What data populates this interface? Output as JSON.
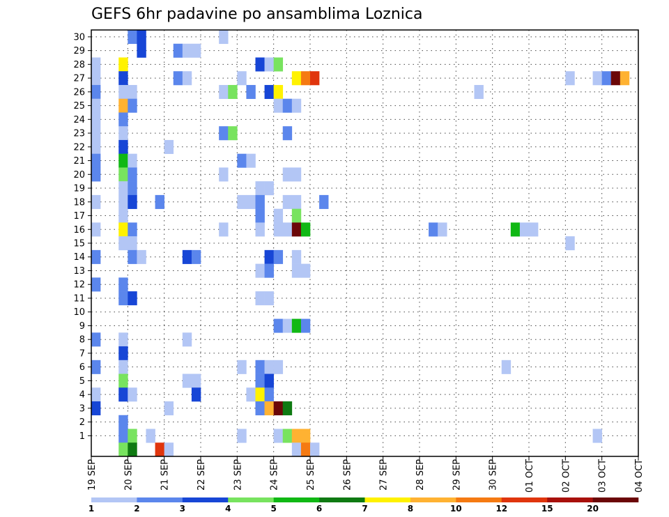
{
  "chart_data": {
    "type": "heatmap",
    "title": "GEFS 6hr padavine po ansamblima Loznica",
    "y_ticks": [
      "1",
      "2",
      "3",
      "4",
      "5",
      "6",
      "7",
      "8",
      "9",
      "10",
      "11",
      "12",
      "13",
      "14",
      "15",
      "16",
      "17",
      "18",
      "19",
      "20",
      "21",
      "22",
      "23",
      "24",
      "25",
      "26",
      "27",
      "28",
      "29",
      "30"
    ],
    "x_ticks": [
      "19 SEP",
      "20 SEP",
      "21 SEP",
      "22 SEP",
      "23 SEP",
      "24 SEP",
      "25 SEP",
      "26 SEP",
      "27 SEP",
      "28 SEP",
      "29 SEP",
      "30 SEP",
      "01 OCT",
      "02 OCT",
      "03 OCT",
      "04 OCT"
    ],
    "time_steps_per_day": 4,
    "grid": true,
    "legend": {
      "position": "bottom",
      "labels": [
        "1",
        "2",
        "3",
        "4",
        "5",
        "6",
        "7",
        "8",
        "10",
        "12",
        "15",
        "20"
      ],
      "colors": [
        "#b3c6f5",
        "#5b86ec",
        "#1746d6",
        "#78e35f",
        "#10b814",
        "#0f7a12",
        "#fff200",
        "#ffb232",
        "#f57a12",
        "#e0350d",
        "#a8100b",
        "#6b0708"
      ]
    },
    "cells_format": "[time_step_index, member, color_class]",
    "cells": [
      [
        4,
        30,
        1
      ],
      [
        5,
        30,
        2
      ],
      [
        5,
        29,
        2
      ],
      [
        14,
        30,
        0
      ],
      [
        9,
        29,
        1
      ],
      [
        10,
        29,
        0
      ],
      [
        11,
        29,
        0
      ],
      [
        0,
        28,
        0
      ],
      [
        3,
        28,
        6
      ],
      [
        18,
        28,
        2
      ],
      [
        19,
        28,
        0
      ],
      [
        20,
        28,
        3
      ],
      [
        0,
        27,
        0
      ],
      [
        3,
        27,
        2
      ],
      [
        9,
        27,
        1
      ],
      [
        10,
        27,
        0
      ],
      [
        16,
        27,
        0
      ],
      [
        22,
        27,
        6
      ],
      [
        23,
        27,
        8
      ],
      [
        24,
        27,
        9
      ],
      [
        52,
        27,
        0
      ],
      [
        55,
        27,
        0
      ],
      [
        56,
        27,
        1
      ],
      [
        57,
        27,
        11
      ],
      [
        58,
        27,
        7
      ],
      [
        0,
        26,
        1
      ],
      [
        3,
        26,
        0
      ],
      [
        4,
        26,
        0
      ],
      [
        14,
        26,
        0
      ],
      [
        15,
        26,
        3
      ],
      [
        17,
        26,
        1
      ],
      [
        19,
        26,
        2
      ],
      [
        20,
        26,
        6
      ],
      [
        42,
        26,
        0
      ],
      [
        0,
        25,
        0
      ],
      [
        3,
        25,
        7
      ],
      [
        4,
        25,
        1
      ],
      [
        20,
        25,
        0
      ],
      [
        21,
        25,
        1
      ],
      [
        22,
        25,
        0
      ],
      [
        0,
        24,
        0
      ],
      [
        3,
        24,
        1
      ],
      [
        0,
        23,
        0
      ],
      [
        3,
        23,
        0
      ],
      [
        14,
        23,
        1
      ],
      [
        15,
        23,
        3
      ],
      [
        21,
        23,
        1
      ],
      [
        0,
        22,
        0
      ],
      [
        3,
        22,
        2
      ],
      [
        8,
        22,
        0
      ],
      [
        0,
        21,
        1
      ],
      [
        3,
        21,
        4
      ],
      [
        4,
        21,
        0
      ],
      [
        16,
        21,
        1
      ],
      [
        17,
        21,
        0
      ],
      [
        0,
        20,
        1
      ],
      [
        3,
        20,
        3
      ],
      [
        4,
        20,
        1
      ],
      [
        14,
        20,
        0
      ],
      [
        21,
        20,
        0
      ],
      [
        22,
        20,
        0
      ],
      [
        3,
        19,
        0
      ],
      [
        4,
        19,
        1
      ],
      [
        18,
        19,
        0
      ],
      [
        19,
        19,
        0
      ],
      [
        0,
        18,
        0
      ],
      [
        3,
        18,
        0
      ],
      [
        4,
        18,
        2
      ],
      [
        7,
        18,
        1
      ],
      [
        16,
        18,
        0
      ],
      [
        17,
        18,
        0
      ],
      [
        18,
        18,
        1
      ],
      [
        21,
        18,
        0
      ],
      [
        22,
        18,
        0
      ],
      [
        25,
        18,
        1
      ],
      [
        3,
        17,
        0
      ],
      [
        18,
        17,
        1
      ],
      [
        20,
        17,
        0
      ],
      [
        22,
        17,
        3
      ],
      [
        0,
        16,
        0
      ],
      [
        3,
        16,
        6
      ],
      [
        4,
        16,
        1
      ],
      [
        14,
        16,
        0
      ],
      [
        18,
        16,
        0
      ],
      [
        20,
        16,
        0
      ],
      [
        21,
        16,
        0
      ],
      [
        22,
        16,
        11
      ],
      [
        23,
        16,
        4
      ],
      [
        37,
        16,
        1
      ],
      [
        38,
        16,
        0
      ],
      [
        46,
        16,
        4
      ],
      [
        47,
        16,
        0
      ],
      [
        48,
        16,
        0
      ],
      [
        3,
        15,
        0
      ],
      [
        4,
        15,
        0
      ],
      [
        52,
        15,
        0
      ],
      [
        0,
        14,
        1
      ],
      [
        4,
        14,
        1
      ],
      [
        5,
        14,
        0
      ],
      [
        10,
        14,
        2
      ],
      [
        11,
        14,
        1
      ],
      [
        19,
        14,
        2
      ],
      [
        20,
        14,
        1
      ],
      [
        22,
        14,
        0
      ],
      [
        18,
        13,
        0
      ],
      [
        19,
        13,
        1
      ],
      [
        22,
        13,
        0
      ],
      [
        23,
        13,
        0
      ],
      [
        0,
        12,
        1
      ],
      [
        3,
        12,
        1
      ],
      [
        3,
        11,
        1
      ],
      [
        4,
        11,
        2
      ],
      [
        18,
        11,
        0
      ],
      [
        19,
        11,
        0
      ],
      [
        20,
        9,
        1
      ],
      [
        21,
        9,
        0
      ],
      [
        22,
        9,
        4
      ],
      [
        23,
        9,
        1
      ],
      [
        0,
        8,
        1
      ],
      [
        3,
        8,
        0
      ],
      [
        10,
        8,
        0
      ],
      [
        3,
        7,
        2
      ],
      [
        0,
        6,
        1
      ],
      [
        3,
        6,
        0
      ],
      [
        16,
        6,
        0
      ],
      [
        18,
        6,
        1
      ],
      [
        19,
        6,
        0
      ],
      [
        20,
        6,
        0
      ],
      [
        45,
        6,
        0
      ],
      [
        3,
        5,
        3
      ],
      [
        10,
        5,
        0
      ],
      [
        11,
        5,
        0
      ],
      [
        18,
        5,
        1
      ],
      [
        19,
        5,
        2
      ],
      [
        0,
        4,
        0
      ],
      [
        3,
        4,
        2
      ],
      [
        4,
        4,
        0
      ],
      [
        11,
        4,
        2
      ],
      [
        17,
        4,
        0
      ],
      [
        18,
        4,
        6
      ],
      [
        19,
        4,
        1
      ],
      [
        0,
        3,
        2
      ],
      [
        8,
        3,
        0
      ],
      [
        18,
        3,
        1
      ],
      [
        19,
        3,
        7
      ],
      [
        20,
        3,
        11
      ],
      [
        21,
        3,
        5
      ],
      [
        3,
        2,
        1
      ],
      [
        3,
        1,
        1
      ],
      [
        4,
        1,
        3
      ],
      [
        6,
        1,
        0
      ],
      [
        16,
        1,
        0
      ],
      [
        20,
        1,
        0
      ],
      [
        21,
        1,
        3
      ],
      [
        22,
        1,
        7
      ],
      [
        23,
        1,
        7
      ],
      [
        55,
        1,
        0
      ],
      [
        3,
        0,
        3
      ],
      [
        4,
        0,
        5
      ],
      [
        7,
        0,
        9
      ],
      [
        8,
        0,
        0
      ],
      [
        22,
        0,
        0
      ],
      [
        23,
        0,
        8
      ],
      [
        24,
        0,
        0
      ]
    ]
  }
}
